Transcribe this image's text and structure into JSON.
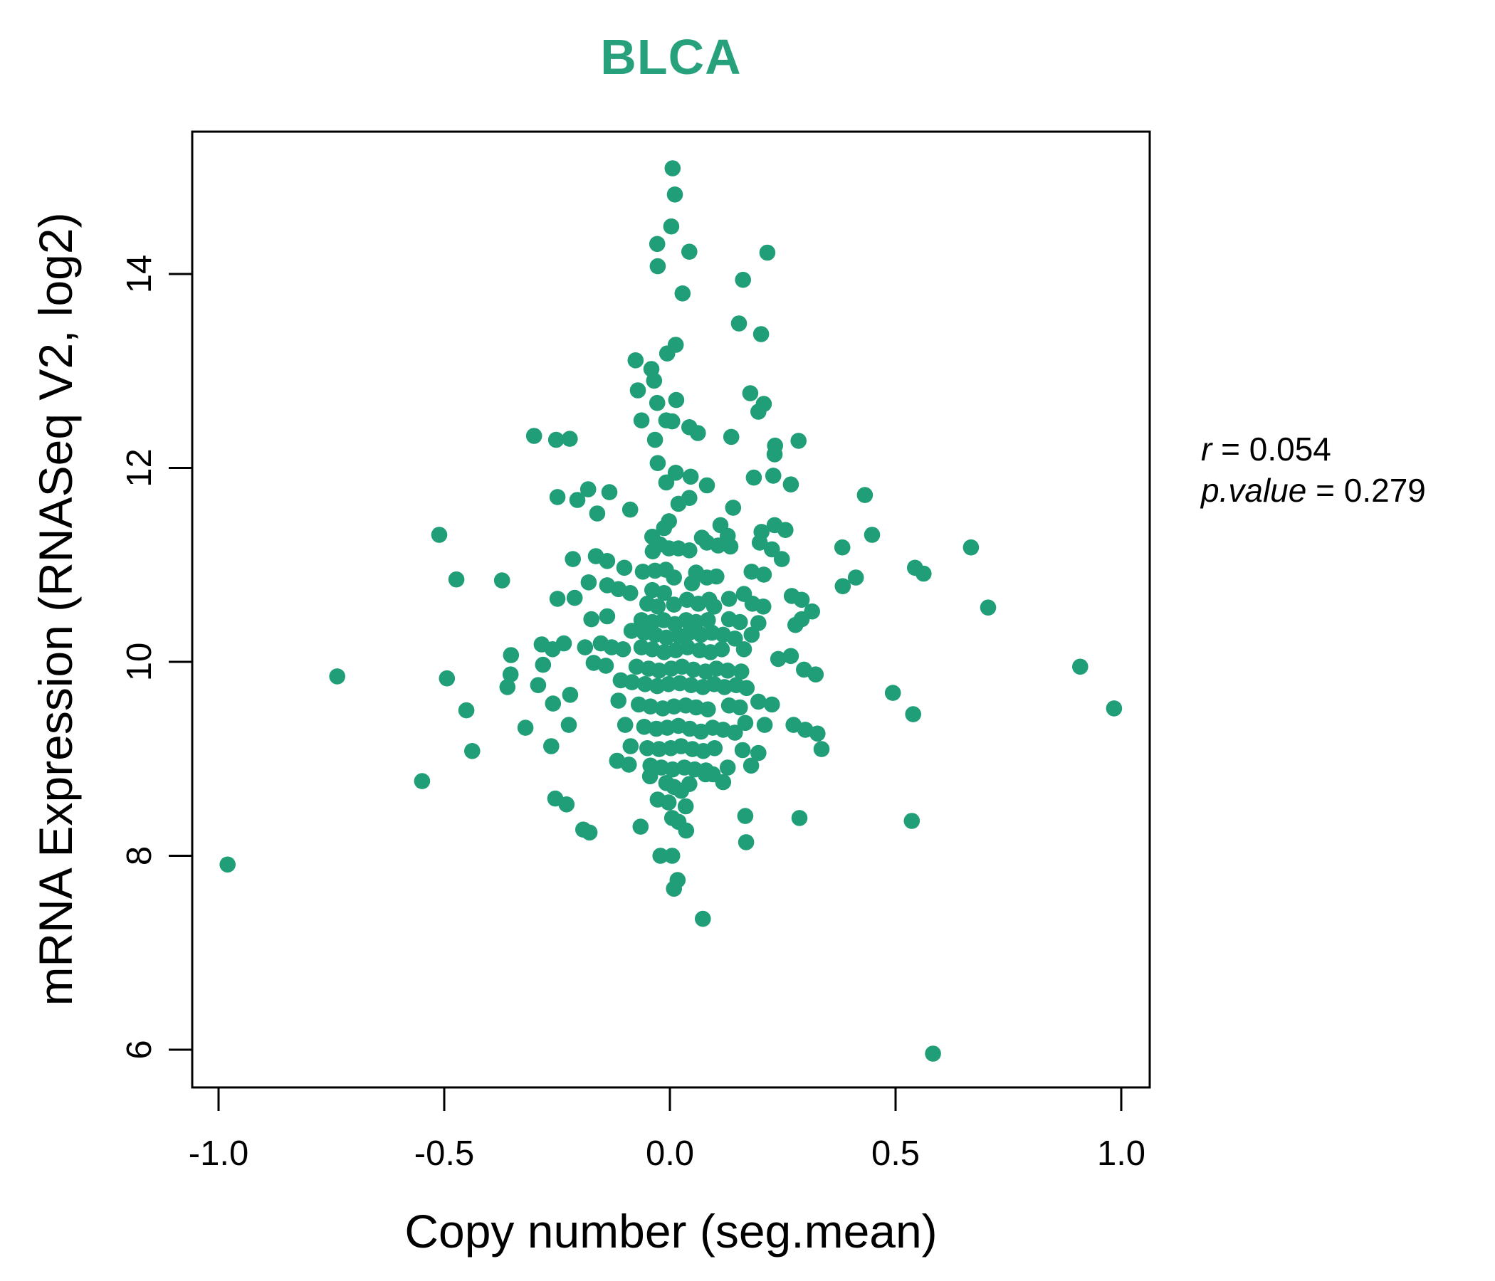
{
  "colors": {
    "accent_green": "#1F9E77",
    "title_green": "#26A17C",
    "axis_black": "#000000",
    "background": "#FFFFFF"
  },
  "annotation": {
    "r_var": "r",
    "r_rest": " = 0.054",
    "p_var": "p.value",
    "p_rest": " = 0.279"
  },
  "chart_data": {
    "type": "scatter",
    "title": "BLCA",
    "xlabel": "Copy number (seg.mean)",
    "ylabel": "mRNA Expression (RNASeq V2, log2)",
    "xlim": [
      -1.06,
      1.06
    ],
    "ylim": [
      5.8,
      15.3
    ],
    "grid": false,
    "legend": "none",
    "marker": {
      "shape": "circle",
      "radius_px": 11.3,
      "color": "#1F9E77"
    },
    "stats": {
      "r": 0.054,
      "p_value": 0.279
    },
    "xticks": {
      "values": [
        -1.0,
        -0.5,
        0.0,
        0.5,
        1.0
      ],
      "labels": [
        "-1.0",
        "-0.5",
        "0.0",
        "0.5",
        "1.0"
      ]
    },
    "yticks": {
      "values": [
        6,
        8,
        10,
        12,
        14
      ],
      "labels": [
        "6",
        "8",
        "10",
        "12",
        "14"
      ]
    },
    "points": [
      [
        0.006,
        15.09
      ],
      [
        0.011,
        14.82
      ],
      [
        0.003,
        14.49
      ],
      [
        -0.028,
        14.31
      ],
      [
        0.043,
        14.23
      ],
      [
        -0.027,
        14.08
      ],
      [
        0.216,
        14.22
      ],
      [
        0.162,
        13.94
      ],
      [
        0.028,
        13.8
      ],
      [
        0.153,
        13.49
      ],
      [
        0.202,
        13.38
      ],
      [
        0.013,
        13.27
      ],
      [
        -0.006,
        13.18
      ],
      [
        -0.076,
        13.11
      ],
      [
        -0.041,
        13.02
      ],
      [
        -0.035,
        12.9
      ],
      [
        -0.071,
        12.8
      ],
      [
        -0.028,
        12.67
      ],
      [
        0.014,
        12.7
      ],
      [
        0.178,
        12.77
      ],
      [
        0.208,
        12.66
      ],
      [
        0.196,
        12.58
      ],
      [
        -0.063,
        12.49
      ],
      [
        -0.008,
        12.49
      ],
      [
        0.005,
        12.48
      ],
      [
        0.043,
        12.42
      ],
      [
        0.062,
        12.36
      ],
      [
        -0.301,
        12.33
      ],
      [
        -0.252,
        12.29
      ],
      [
        -0.222,
        12.3
      ],
      [
        -0.033,
        12.29
      ],
      [
        0.136,
        12.32
      ],
      [
        0.233,
        12.23
      ],
      [
        0.285,
        12.28
      ],
      [
        -0.511,
        11.31
      ],
      [
        -0.473,
        10.85
      ],
      [
        -0.372,
        10.84
      ],
      [
        -0.737,
        9.85
      ],
      [
        -0.494,
        9.83
      ],
      [
        -0.352,
        10.07
      ],
      [
        -0.353,
        9.87
      ],
      [
        -0.36,
        9.74
      ],
      [
        -0.451,
        9.5
      ],
      [
        -0.438,
        9.08
      ],
      [
        0.232,
        12.14
      ],
      [
        -0.027,
        12.05
      ],
      [
        0.013,
        11.95
      ],
      [
        0.046,
        11.91
      ],
      [
        -0.008,
        11.85
      ],
      [
        0.186,
        11.9
      ],
      [
        0.229,
        11.92
      ],
      [
        0.268,
        11.83
      ],
      [
        -0.181,
        11.78
      ],
      [
        -0.249,
        11.7
      ],
      [
        -0.205,
        11.67
      ],
      [
        -0.134,
        11.75
      ],
      [
        0.082,
        11.82
      ],
      [
        0.043,
        11.69
      ],
      [
        0.019,
        11.63
      ],
      [
        -0.161,
        11.53
      ],
      [
        -0.088,
        11.57
      ],
      [
        0.14,
        11.59
      ],
      [
        -0.002,
        11.45
      ],
      [
        -0.013,
        11.38
      ],
      [
        0.112,
        11.41
      ],
      [
        0.128,
        11.3
      ],
      [
        0.203,
        11.34
      ],
      [
        0.232,
        11.41
      ],
      [
        0.256,
        11.36
      ],
      [
        -0.039,
        11.29
      ],
      [
        -0.022,
        11.21
      ],
      [
        -0.002,
        11.17
      ],
      [
        0.019,
        11.17
      ],
      [
        -0.038,
        11.14
      ],
      [
        0.071,
        11.28
      ],
      [
        0.082,
        11.23
      ],
      [
        0.043,
        11.15
      ],
      [
        0.107,
        11.2
      ],
      [
        0.134,
        11.19
      ],
      [
        -0.215,
        11.06
      ],
      [
        -0.164,
        11.09
      ],
      [
        -0.139,
        11.04
      ],
      [
        0.199,
        11.23
      ],
      [
        0.226,
        11.16
      ],
      [
        0.248,
        11.06
      ],
      [
        -0.101,
        10.97
      ],
      [
        -0.06,
        10.93
      ],
      [
        -0.033,
        10.94
      ],
      [
        -0.009,
        10.95
      ],
      [
        0.009,
        10.87
      ],
      [
        0.058,
        10.92
      ],
      [
        0.082,
        10.87
      ],
      [
        0.103,
        10.88
      ],
      [
        0.049,
        10.81
      ],
      [
        0.181,
        10.93
      ],
      [
        0.208,
        10.9
      ],
      [
        -0.18,
        10.82
      ],
      [
        -0.139,
        10.79
      ],
      [
        -0.114,
        10.75
      ],
      [
        -0.088,
        10.71
      ],
      [
        -0.039,
        10.74
      ],
      [
        -0.013,
        10.71
      ],
      [
        -0.249,
        10.65
      ],
      [
        -0.211,
        10.66
      ],
      [
        -0.05,
        10.6
      ],
      [
        -0.027,
        10.57
      ],
      [
        0.009,
        10.59
      ],
      [
        0.038,
        10.64
      ],
      [
        0.063,
        10.6
      ],
      [
        0.087,
        10.64
      ],
      [
        0.098,
        10.57
      ],
      [
        0.131,
        10.65
      ],
      [
        0.164,
        10.7
      ],
      [
        0.183,
        10.6
      ],
      [
        0.207,
        10.57
      ],
      [
        0.27,
        10.68
      ],
      [
        0.292,
        10.64
      ],
      [
        0.315,
        10.52
      ],
      [
        0.292,
        10.44
      ],
      [
        0.278,
        10.38
      ],
      [
        -0.174,
        10.44
      ],
      [
        -0.139,
        10.47
      ],
      [
        -0.063,
        10.43
      ],
      [
        -0.039,
        10.41
      ],
      [
        -0.014,
        10.43
      ],
      [
        0.011,
        10.39
      ],
      [
        0.036,
        10.43
      ],
      [
        0.058,
        10.41
      ],
      [
        0.084,
        10.43
      ],
      [
        0.131,
        10.44
      ],
      [
        0.155,
        10.41
      ],
      [
        0.196,
        10.4
      ],
      [
        -0.085,
        10.32
      ],
      [
        -0.057,
        10.3
      ],
      [
        -0.032,
        10.28
      ],
      [
        -0.008,
        10.25
      ],
      [
        0.019,
        10.27
      ],
      [
        0.043,
        10.3
      ],
      [
        0.069,
        10.28
      ],
      [
        0.093,
        10.3
      ],
      [
        0.118,
        10.28
      ],
      [
        0.144,
        10.24
      ],
      [
        0.181,
        10.28
      ],
      [
        -0.284,
        10.18
      ],
      [
        -0.26,
        10.13
      ],
      [
        -0.235,
        10.19
      ],
      [
        -0.188,
        10.15
      ],
      [
        -0.153,
        10.19
      ],
      [
        -0.129,
        10.15
      ],
      [
        -0.104,
        10.13
      ],
      [
        -0.063,
        10.15
      ],
      [
        -0.039,
        10.13
      ],
      [
        -0.013,
        10.1
      ],
      [
        0.013,
        10.12
      ],
      [
        0.039,
        10.15
      ],
      [
        0.066,
        10.12
      ],
      [
        0.09,
        10.1
      ],
      [
        0.115,
        10.13
      ],
      [
        0.164,
        10.13
      ],
      [
        0.24,
        10.03
      ],
      [
        0.268,
        10.06
      ],
      [
        -0.281,
        9.97
      ],
      [
        -0.169,
        9.99
      ],
      [
        -0.142,
        9.96
      ],
      [
        -0.074,
        9.95
      ],
      [
        -0.047,
        9.93
      ],
      [
        -0.024,
        9.91
      ],
      [
        0.003,
        9.93
      ],
      [
        0.027,
        9.95
      ],
      [
        0.052,
        9.92
      ],
      [
        0.079,
        9.9
      ],
      [
        0.103,
        9.93
      ],
      [
        0.128,
        9.91
      ],
      [
        0.158,
        9.9
      ],
      [
        0.297,
        9.92
      ],
      [
        0.323,
        9.87
      ],
      [
        -0.109,
        9.81
      ],
      [
        -0.084,
        9.79
      ],
      [
        -0.055,
        9.77
      ],
      [
        -0.028,
        9.75
      ],
      [
        -0.003,
        9.77
      ],
      [
        0.022,
        9.78
      ],
      [
        0.047,
        9.76
      ],
      [
        0.073,
        9.74
      ],
      [
        0.098,
        9.77
      ],
      [
        0.121,
        9.74
      ],
      [
        0.147,
        9.76
      ],
      [
        0.17,
        9.73
      ],
      [
        0.196,
        9.59
      ],
      [
        0.226,
        9.56
      ],
      [
        -0.292,
        9.76
      ],
      [
        -0.221,
        9.66
      ],
      [
        -0.114,
        9.6
      ],
      [
        -0.069,
        9.56
      ],
      [
        -0.043,
        9.54
      ],
      [
        -0.016,
        9.52
      ],
      [
        0.009,
        9.54
      ],
      [
        0.035,
        9.55
      ],
      [
        0.058,
        9.53
      ],
      [
        0.084,
        9.51
      ],
      [
        0.131,
        9.55
      ],
      [
        0.155,
        9.53
      ],
      [
        -0.259,
        9.57
      ],
      [
        -0.263,
        9.13
      ],
      [
        -0.32,
        9.32
      ],
      [
        -0.224,
        9.35
      ],
      [
        -0.099,
        9.35
      ],
      [
        -0.057,
        9.33
      ],
      [
        -0.03,
        9.31
      ],
      [
        -0.006,
        9.32
      ],
      [
        0.019,
        9.34
      ],
      [
        0.044,
        9.31
      ],
      [
        0.069,
        9.28
      ],
      [
        0.095,
        9.32
      ],
      [
        0.118,
        9.3
      ],
      [
        0.144,
        9.27
      ],
      [
        0.167,
        9.37
      ],
      [
        0.21,
        9.35
      ],
      [
        0.274,
        9.35
      ],
      [
        0.3,
        9.3
      ],
      [
        0.327,
        9.26
      ],
      [
        -0.087,
        9.13
      ],
      [
        -0.05,
        9.11
      ],
      [
        -0.024,
        9.1
      ],
      [
        0.002,
        9.11
      ],
      [
        0.025,
        9.13
      ],
      [
        0.05,
        9.1
      ],
      [
        0.074,
        9.08
      ],
      [
        0.099,
        9.11
      ],
      [
        0.161,
        9.09
      ],
      [
        0.196,
        9.06
      ],
      [
        0.336,
        9.1
      ],
      [
        -0.043,
        8.93
      ],
      [
        -0.019,
        8.91
      ],
      [
        0.006,
        8.89
      ],
      [
        0.032,
        8.91
      ],
      [
        0.055,
        8.89
      ],
      [
        0.08,
        8.88
      ],
      [
        0.128,
        8.91
      ],
      [
        -0.091,
        8.94
      ],
      [
        -0.117,
        8.98
      ],
      [
        0.18,
        8.93
      ],
      [
        0.432,
        11.72
      ],
      [
        0.448,
        11.31
      ],
      [
        0.382,
        11.18
      ],
      [
        0.667,
        11.18
      ],
      [
        0.543,
        10.97
      ],
      [
        0.562,
        10.91
      ],
      [
        0.412,
        10.87
      ],
      [
        0.383,
        10.78
      ],
      [
        0.705,
        10.56
      ],
      [
        0.909,
        9.95
      ],
      [
        0.494,
        9.68
      ],
      [
        0.539,
        9.46
      ],
      [
        0.984,
        9.52
      ],
      [
        -0.549,
        8.77
      ],
      [
        -0.98,
        7.91
      ],
      [
        -0.254,
        8.59
      ],
      [
        -0.229,
        8.53
      ],
      [
        -0.192,
        8.27
      ],
      [
        -0.178,
        8.24
      ],
      [
        -0.065,
        8.3
      ],
      [
        -0.044,
        8.82
      ],
      [
        -0.008,
        8.75
      ],
      [
        0.009,
        8.71
      ],
      [
        0.025,
        8.67
      ],
      [
        0.043,
        8.74
      ],
      [
        -0.027,
        8.58
      ],
      [
        -0.003,
        8.55
      ],
      [
        0.035,
        8.51
      ],
      [
        0.005,
        8.39
      ],
      [
        0.019,
        8.35
      ],
      [
        0.036,
        8.26
      ],
      [
        0.079,
        8.84
      ],
      [
        0.095,
        8.84
      ],
      [
        0.118,
        8.76
      ],
      [
        0.167,
        8.41
      ],
      [
        0.169,
        8.14
      ],
      [
        0.287,
        8.39
      ],
      [
        -0.021,
        8.0
      ],
      [
        0.005,
        8.0
      ],
      [
        0.017,
        7.75
      ],
      [
        0.009,
        7.66
      ],
      [
        0.073,
        7.35
      ],
      [
        0.536,
        8.36
      ],
      [
        0.583,
        5.96
      ]
    ]
  }
}
